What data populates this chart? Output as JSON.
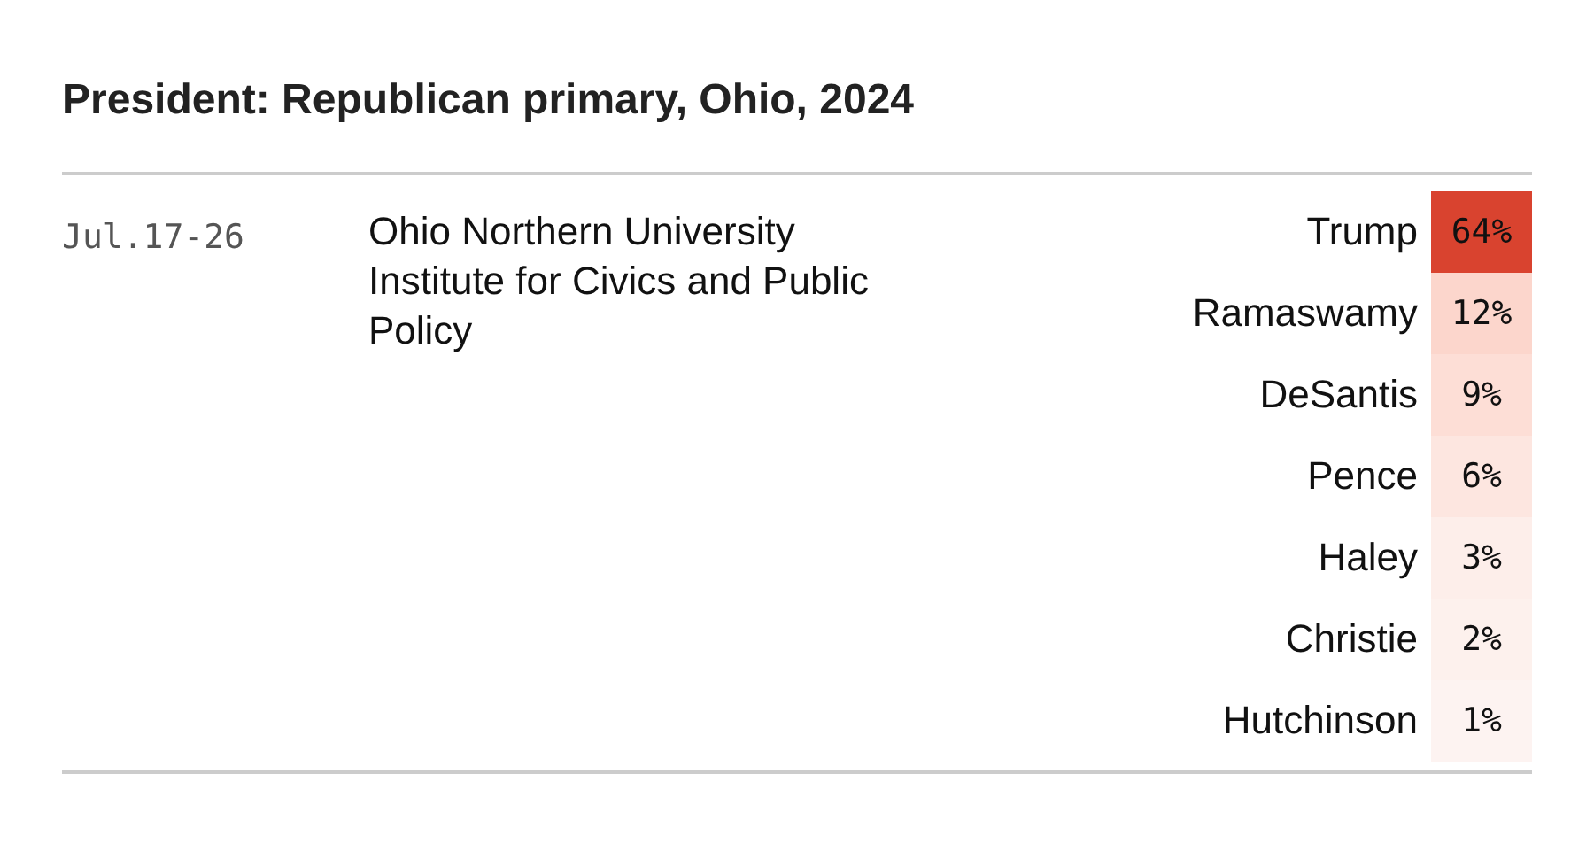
{
  "chart_data": {
    "type": "heatmap",
    "title": "President: Republican primary, Ohio, 2024",
    "annotations": [
      "Jul.17-26",
      "Ohio Northern University Institute for Civics and Public Policy"
    ],
    "categories": [
      null
    ],
    "y_categories": [
      "Trump",
      "Ramaswamy",
      "DeSantis",
      "Pence",
      "Haley",
      "Christie",
      "Hutchinson"
    ],
    "cells": [
      [
        64
      ],
      [
        12
      ],
      [
        9
      ],
      [
        6
      ],
      [
        3
      ],
      [
        2
      ],
      [
        1
      ]
    ],
    "cell_labels": [
      [
        "64%"
      ],
      [
        "12%"
      ],
      [
        "9%"
      ],
      [
        "6%"
      ],
      [
        "3%"
      ],
      [
        "2%"
      ],
      [
        "1%"
      ]
    ]
  }
}
